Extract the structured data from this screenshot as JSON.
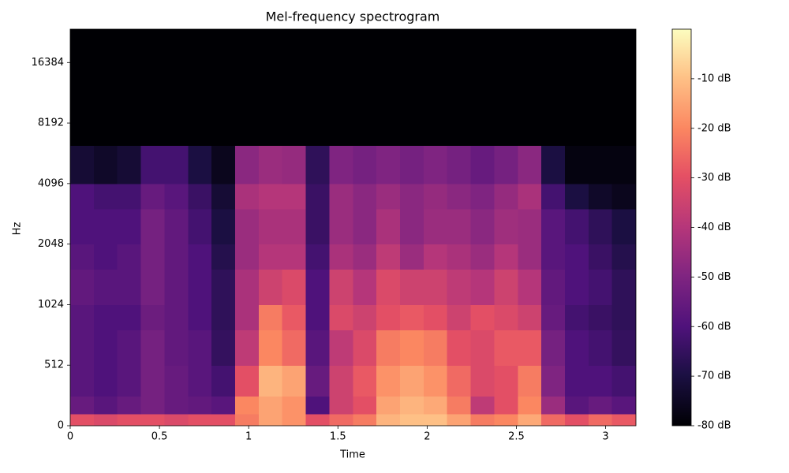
{
  "chart_data": {
    "type": "heatmap",
    "title": "Mel-frequency spectrogram",
    "x_label": "Time",
    "y_label": "Hz",
    "y_scale": "mel",
    "colormap": "magma",
    "xlim": [
      0,
      3.17
    ],
    "xticks": [
      0,
      0.5,
      1,
      1.5,
      2,
      2.5,
      3
    ],
    "ylim": [
      0,
      24000
    ],
    "yticks": [
      0,
      512,
      1024,
      2048,
      4096,
      8192,
      16384
    ],
    "clim": [
      -80,
      0
    ],
    "cticks": [
      {
        "value": -10,
        "label": "-10 dB"
      },
      {
        "value": -20,
        "label": "-20 dB"
      },
      {
        "value": -30,
        "label": "-30 dB"
      },
      {
        "value": -40,
        "label": "-40 dB"
      },
      {
        "value": -50,
        "label": "-50 dB"
      },
      {
        "value": -60,
        "label": "-60 dB"
      },
      {
        "value": -70,
        "label": "-70 dB"
      },
      {
        "value": -80,
        "label": "-80 dB"
      }
    ],
    "xbins": [
      0,
      0.132,
      0.264,
      0.396,
      0.528,
      0.66,
      0.792,
      0.924,
      1.056,
      1.188,
      1.32,
      1.452,
      1.584,
      1.716,
      1.848,
      1.98,
      2.112,
      2.244,
      2.376,
      2.508,
      2.64,
      2.772,
      2.904,
      3.036,
      3.168
    ],
    "ybins": [
      0,
      100,
      250,
      512,
      768,
      1024,
      1536,
      2048,
      3072,
      4096,
      6350,
      24000
    ],
    "values": [
      [
        -30,
        -32,
        -30,
        -30,
        -32,
        -30,
        -30,
        -22,
        -15,
        -18,
        -30,
        -25,
        -22,
        -12,
        -10,
        -10,
        -15,
        -22,
        -20,
        -14,
        -25,
        -30,
        -25,
        -28
      ],
      [
        -55,
        -58,
        -55,
        -52,
        -55,
        -56,
        -58,
        -20,
        -15,
        -18,
        -60,
        -35,
        -30,
        -15,
        -12,
        -14,
        -22,
        -38,
        -30,
        -20,
        -45,
        -58,
        -55,
        -58
      ],
      [
        -58,
        -60,
        -58,
        -52,
        -55,
        -58,
        -62,
        -30,
        -12,
        -15,
        -55,
        -35,
        -28,
        -18,
        -15,
        -18,
        -25,
        -32,
        -30,
        -22,
        -50,
        -60,
        -60,
        -62
      ],
      [
        -58,
        -60,
        -58,
        -52,
        -56,
        -58,
        -65,
        -38,
        -20,
        -25,
        -58,
        -38,
        -32,
        -22,
        -20,
        -22,
        -30,
        -32,
        -28,
        -28,
        -52,
        -60,
        -62,
        -65
      ],
      [
        -58,
        -60,
        -60,
        -54,
        -56,
        -60,
        -66,
        -42,
        -22,
        -28,
        -60,
        -32,
        -35,
        -30,
        -28,
        -30,
        -35,
        -30,
        -32,
        -35,
        -55,
        -62,
        -64,
        -66
      ],
      [
        -56,
        -58,
        -58,
        -52,
        -56,
        -60,
        -66,
        -42,
        -35,
        -32,
        -60,
        -35,
        -40,
        -32,
        -35,
        -35,
        -38,
        -40,
        -35,
        -40,
        -56,
        -60,
        -62,
        -66
      ],
      [
        -58,
        -60,
        -58,
        -52,
        -56,
        -60,
        -68,
        -45,
        -40,
        -40,
        -62,
        -42,
        -45,
        -38,
        -45,
        -40,
        -42,
        -45,
        -40,
        -45,
        -58,
        -60,
        -64,
        -68
      ],
      [
        -60,
        -60,
        -60,
        -52,
        -56,
        -62,
        -70,
        -45,
        -42,
        -42,
        -64,
        -45,
        -48,
        -42,
        -48,
        -45,
        -45,
        -48,
        -44,
        -45,
        -58,
        -62,
        -66,
        -70
      ],
      [
        -60,
        -62,
        -62,
        -55,
        -58,
        -64,
        -72,
        -42,
        -40,
        -40,
        -64,
        -45,
        -48,
        -45,
        -48,
        -46,
        -48,
        -50,
        -46,
        -42,
        -62,
        -70,
        -74,
        -76
      ],
      [
        -72,
        -74,
        -72,
        -62,
        -62,
        -70,
        -76,
        -48,
        -45,
        -46,
        -66,
        -50,
        -52,
        -50,
        -52,
        -50,
        -52,
        -55,
        -52,
        -48,
        -70,
        -78,
        -78,
        -78
      ],
      [
        -80,
        -80,
        -80,
        -80,
        -80,
        -80,
        -80,
        -80,
        -80,
        -80,
        -80,
        -80,
        -80,
        -80,
        -80,
        -80,
        -80,
        -80,
        -80,
        -80,
        -80,
        -80,
        -80,
        -80
      ]
    ]
  }
}
